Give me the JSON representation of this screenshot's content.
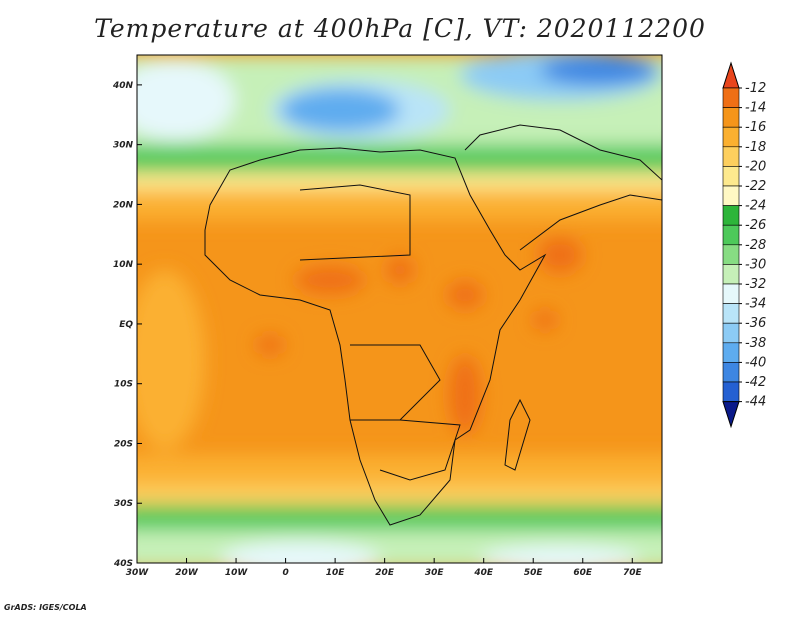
{
  "title": "Temperature at 400hPa [C], VT: 2020112200",
  "credit": "GrADS: IGES/COLA",
  "map": {
    "lon_range": [
      -30,
      76
    ],
    "lat_range": [
      -40,
      45
    ],
    "x_ticks": [
      {
        "lon": -30,
        "label": "30W"
      },
      {
        "lon": -20,
        "label": "20W"
      },
      {
        "lon": -10,
        "label": "10W"
      },
      {
        "lon": 0,
        "label": "0"
      },
      {
        "lon": 10,
        "label": "10E"
      },
      {
        "lon": 20,
        "label": "20E"
      },
      {
        "lon": 30,
        "label": "30E"
      },
      {
        "lon": 40,
        "label": "40E"
      },
      {
        "lon": 50,
        "label": "50E"
      },
      {
        "lon": 60,
        "label": "60E"
      },
      {
        "lon": 70,
        "label": "70E"
      }
    ],
    "y_ticks": [
      {
        "lat": 40,
        "label": "40N"
      },
      {
        "lat": 30,
        "label": "30N"
      },
      {
        "lat": 20,
        "label": "20N"
      },
      {
        "lat": 10,
        "label": "10N"
      },
      {
        "lat": 0,
        "label": "EQ"
      },
      {
        "lat": -10,
        "label": "10S"
      },
      {
        "lat": -20,
        "label": "20S"
      },
      {
        "lat": -30,
        "label": "30S"
      },
      {
        "lat": -40,
        "label": "40S"
      }
    ]
  },
  "colorbar": {
    "levels": [
      "-12",
      "-14",
      "-16",
      "-18",
      "-20",
      "-22",
      "-24",
      "-26",
      "-28",
      "-30",
      "-32",
      "-34",
      "-36",
      "-38",
      "-40",
      "-42",
      "-44"
    ],
    "colors": [
      "#e8451c",
      "#ef6f15",
      "#f5951a",
      "#fbb030",
      "#fdcf5e",
      "#fde98e",
      "#fff8c4",
      "#2db53a",
      "#4dc95a",
      "#87dc83",
      "#c6f0b8",
      "#e6f8fb",
      "#b9e4f8",
      "#8ccbf5",
      "#5eacef",
      "#3d86e2",
      "#2460d2",
      "#0a1a8a"
    ]
  }
}
